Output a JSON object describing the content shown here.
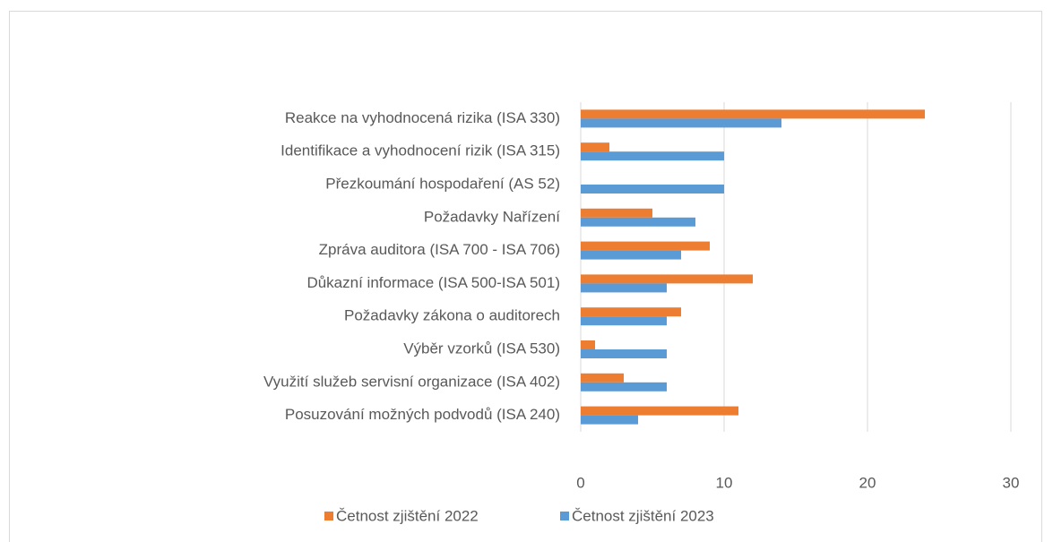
{
  "chart_data": {
    "type": "bar",
    "orientation": "horizontal",
    "categories": [
      "Reakce na vyhodnocená rizika (ISA 330)",
      "Identifikace a vyhodnocení rizik (ISA 315)",
      "Přezkoumání hospodaření (AS 52)",
      "Požadavky Nařízení",
      "Zpráva auditora (ISA 700 - ISA 706)",
      "Důkazní informace (ISA 500-ISA 501)",
      "Požadavky zákona o auditorech",
      "Výběr vzorků (ISA 530)",
      "Využití služeb servisní organizace (ISA 402)",
      "Posuzování možných podvodů (ISA 240)"
    ],
    "series": [
      {
        "name": "Četnost zjištění 2022",
        "color": "#ed7d31",
        "values": [
          24,
          2,
          0,
          5,
          9,
          12,
          7,
          1,
          3,
          11
        ]
      },
      {
        "name": "Četnost zjištění 2023",
        "color": "#5b9bd5",
        "values": [
          14,
          10,
          10,
          8,
          7,
          6,
          6,
          6,
          6,
          4
        ]
      }
    ],
    "xlim": [
      0,
      30
    ],
    "xticks": [
      0,
      10,
      20,
      30
    ],
    "grid": true,
    "legend": "bottom"
  }
}
